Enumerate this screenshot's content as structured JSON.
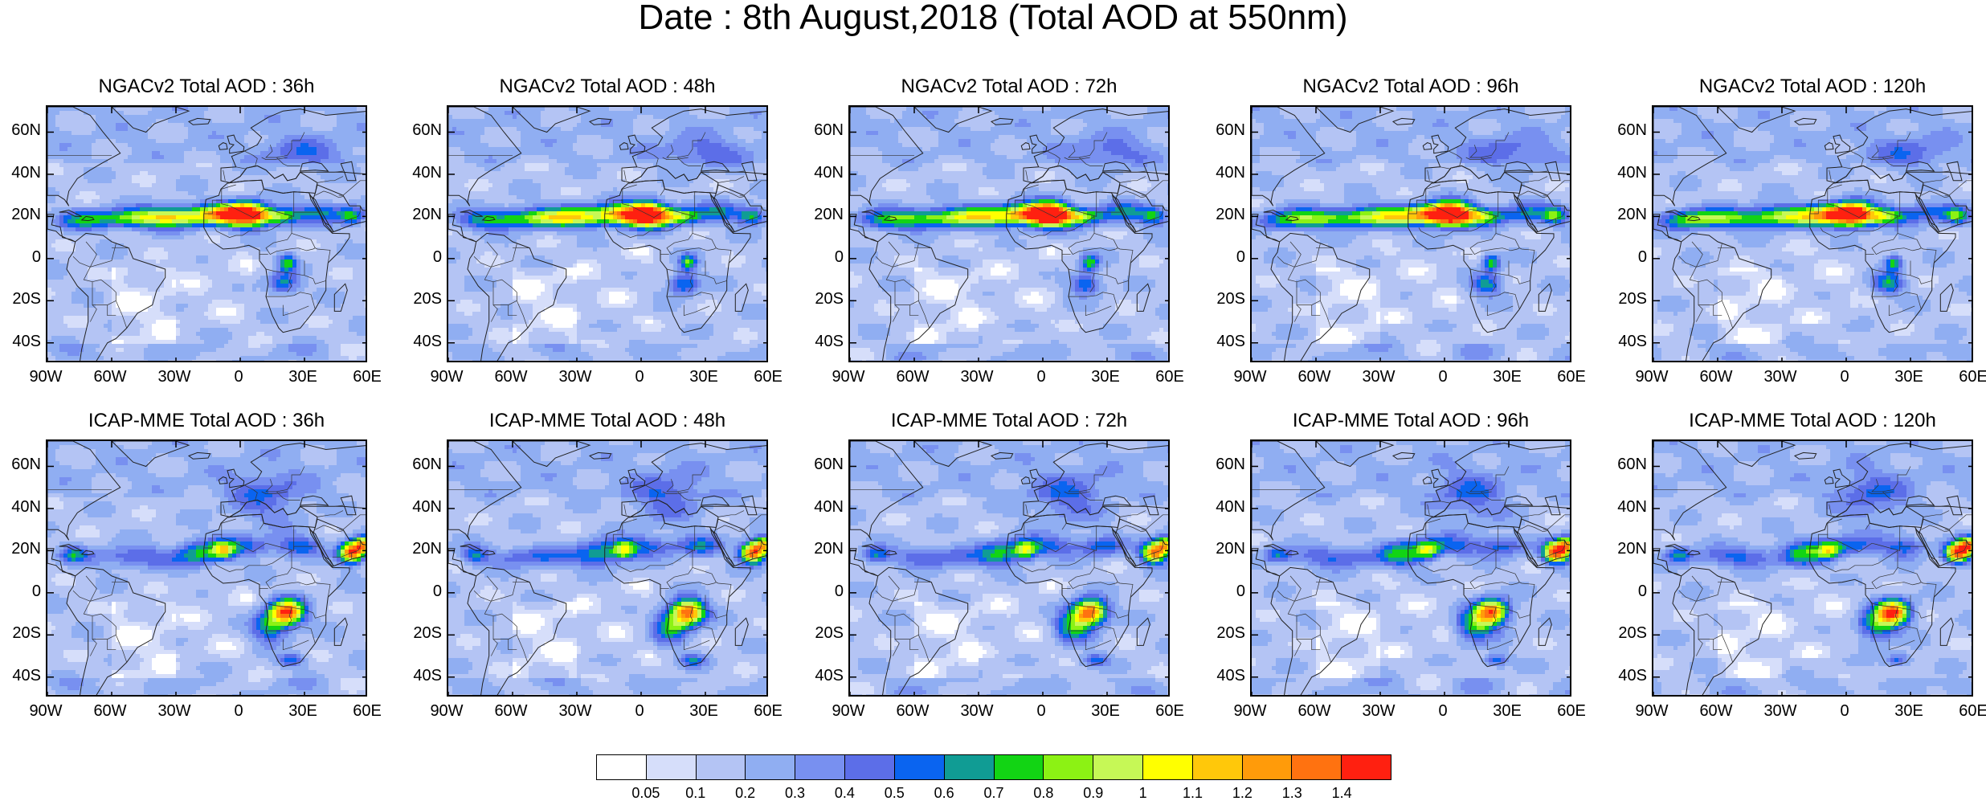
{
  "title": "Date : 8th August,2018 (Total AOD at 550nm)",
  "panels": [
    {
      "title": "NGACv2 Total AOD : 36h",
      "model": "NGAC",
      "lead": 36
    },
    {
      "title": "NGACv2 Total AOD : 48h",
      "model": "NGAC",
      "lead": 48
    },
    {
      "title": "NGACv2 Total AOD : 72h",
      "model": "NGAC",
      "lead": 72
    },
    {
      "title": "NGACv2 Total AOD : 96h",
      "model": "NGAC",
      "lead": 96
    },
    {
      "title": "NGACv2 Total AOD : 120h",
      "model": "NGAC",
      "lead": 120
    },
    {
      "title": "ICAP-MME Total AOD : 36h",
      "model": "ICAP",
      "lead": 36
    },
    {
      "title": "ICAP-MME Total AOD : 48h",
      "model": "ICAP",
      "lead": 48
    },
    {
      "title": "ICAP-MME Total AOD : 72h",
      "model": "ICAP",
      "lead": 72
    },
    {
      "title": "ICAP-MME Total AOD : 96h",
      "model": "ICAP",
      "lead": 96
    },
    {
      "title": "ICAP-MME Total AOD : 120h",
      "model": "ICAP",
      "lead": 120
    }
  ],
  "lat_ticks": [
    "60N",
    "40N",
    "20N",
    "0",
    "20S",
    "40S"
  ],
  "lon_ticks": [
    "90W",
    "60W",
    "30W",
    "0",
    "30E",
    "60E"
  ],
  "colorbar": {
    "levels": [
      "0.05",
      "0.1",
      "0.2",
      "0.3",
      "0.4",
      "0.5",
      "0.6",
      "0.7",
      "0.8",
      "0.9",
      "1",
      "1.1",
      "1.2",
      "1.3",
      "1.4"
    ],
    "colors": [
      "#ffffff",
      "#d6defa",
      "#b4c4f4",
      "#90aef2",
      "#7890f0",
      "#5c6ee8",
      "#0a64f0",
      "#109c94",
      "#12d414",
      "#8cf214",
      "#c6f856",
      "#ffff00",
      "#ffc80a",
      "#ff9b0a",
      "#ff7210",
      "#ff2010"
    ]
  },
  "map_colors": {
    "ocean": "#bcc8f2",
    "land": "#c6d2f6",
    "low": "#ffffff",
    "border": "#333333"
  }
}
